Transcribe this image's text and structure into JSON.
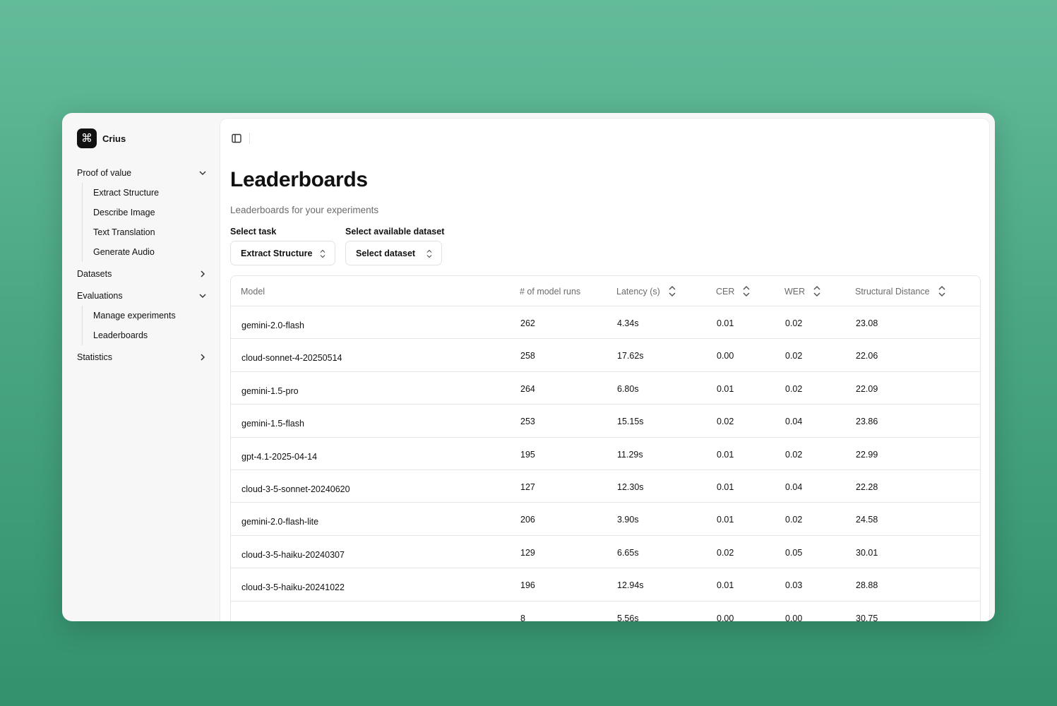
{
  "brand": {
    "name": "Crius",
    "logo_icon": "command-icon"
  },
  "sidebar": {
    "groups": [
      {
        "label": "Proof of value",
        "expanded": true,
        "items": [
          "Extract Structure",
          "Describe Image",
          "Text Translation",
          "Generate Audio"
        ]
      },
      {
        "label": "Datasets",
        "expanded": false,
        "items": []
      },
      {
        "label": "Evaluations",
        "expanded": true,
        "items": [
          "Manage experiments",
          "Leaderboards"
        ]
      },
      {
        "label": "Statistics",
        "expanded": false,
        "items": []
      }
    ]
  },
  "header": {
    "toggle_icon": "sidebar-toggle-icon"
  },
  "page": {
    "title": "Leaderboards",
    "subtitle": "Leaderboards for your experiments"
  },
  "filters": {
    "task": {
      "label": "Select task",
      "value": "Extract Structure"
    },
    "dataset": {
      "label": "Select available dataset",
      "value": "Select dataset"
    }
  },
  "table": {
    "columns": [
      {
        "label": "Model",
        "sortable": false
      },
      {
        "label": "# of model runs",
        "sortable": false
      },
      {
        "label": "Latency (s)",
        "sortable": true
      },
      {
        "label": "CER",
        "sortable": true
      },
      {
        "label": "WER",
        "sortable": true
      },
      {
        "label": "Structural Distance",
        "sortable": true
      }
    ],
    "rows": [
      [
        "gemini-2.0-flash",
        "262",
        "4.34s",
        "0.01",
        "0.02",
        "23.08"
      ],
      [
        "cloud-sonnet-4-20250514",
        "258",
        "17.62s",
        "0.00",
        "0.02",
        "22.06"
      ],
      [
        "gemini-1.5-pro",
        "264",
        "6.80s",
        "0.01",
        "0.02",
        "22.09"
      ],
      [
        "gemini-1.5-flash",
        "253",
        "15.15s",
        "0.02",
        "0.04",
        "23.86"
      ],
      [
        "gpt-4.1-2025-04-14",
        "195",
        "11.29s",
        "0.01",
        "0.02",
        "22.99"
      ],
      [
        "cloud-3-5-sonnet-20240620",
        "127",
        "12.30s",
        "0.01",
        "0.04",
        "22.28"
      ],
      [
        "gemini-2.0-flash-lite",
        "206",
        "3.90s",
        "0.01",
        "0.02",
        "24.58"
      ],
      [
        "cloud-3-5-haiku-20240307",
        "129",
        "6.65s",
        "0.02",
        "0.05",
        "30.01"
      ],
      [
        "cloud-3-5-haiku-20241022",
        "196",
        "12.94s",
        "0.01",
        "0.03",
        "28.88"
      ],
      [
        "",
        "8",
        "5.56s",
        "0.00",
        "0.00",
        "30.75"
      ]
    ]
  }
}
